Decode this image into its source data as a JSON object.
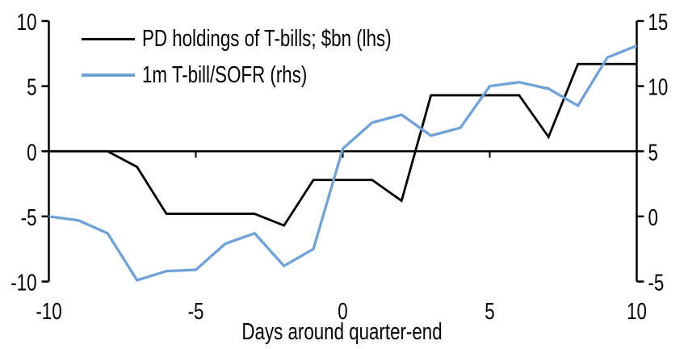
{
  "chart_data": {
    "type": "line",
    "title": "",
    "xlabel": "Days around quarter-end",
    "x": [
      -10,
      -9,
      -8,
      -7,
      -6,
      -5,
      -4,
      -3,
      -2,
      -1,
      0,
      1,
      2,
      3,
      4,
      5,
      6,
      7,
      8,
      9,
      10
    ],
    "x_ticks": [
      -10,
      -5,
      0,
      5,
      10
    ],
    "left_axis": {
      "ticks": [
        10,
        5,
        0,
        -5,
        -10
      ],
      "range": [
        -10,
        10
      ]
    },
    "right_axis": {
      "ticks": [
        15,
        10,
        5,
        0,
        -5
      ],
      "range": [
        -5,
        15
      ]
    },
    "grid": false,
    "legend_position": "top-left",
    "series": [
      {
        "name": "PD holdings of T-bills; $bn (lhs)",
        "axis": "left",
        "color": "#000000",
        "values": [
          0,
          0,
          0,
          -1.2,
          -4.8,
          -4.8,
          -4.8,
          -4.8,
          -5.7,
          -2.2,
          -2.2,
          -2.2,
          -3.8,
          4.3,
          4.3,
          4.3,
          4.3,
          1.1,
          6.7,
          6.7,
          6.7
        ]
      },
      {
        "name": "1m T-bill/SOFR (rhs)",
        "axis": "right",
        "color": "#6EA2D8",
        "values": [
          0,
          -0.3,
          -1.3,
          -4.9,
          -4.2,
          -4.1,
          -2.1,
          -1.3,
          -3.8,
          -2.5,
          5.2,
          7.2,
          7.8,
          6.2,
          6.8,
          10,
          10.3,
          9.8,
          8.5,
          12.2,
          13.1
        ]
      }
    ]
  },
  "colors": {
    "background": "#ffffff",
    "axis": "#000000",
    "text": "#000000"
  }
}
